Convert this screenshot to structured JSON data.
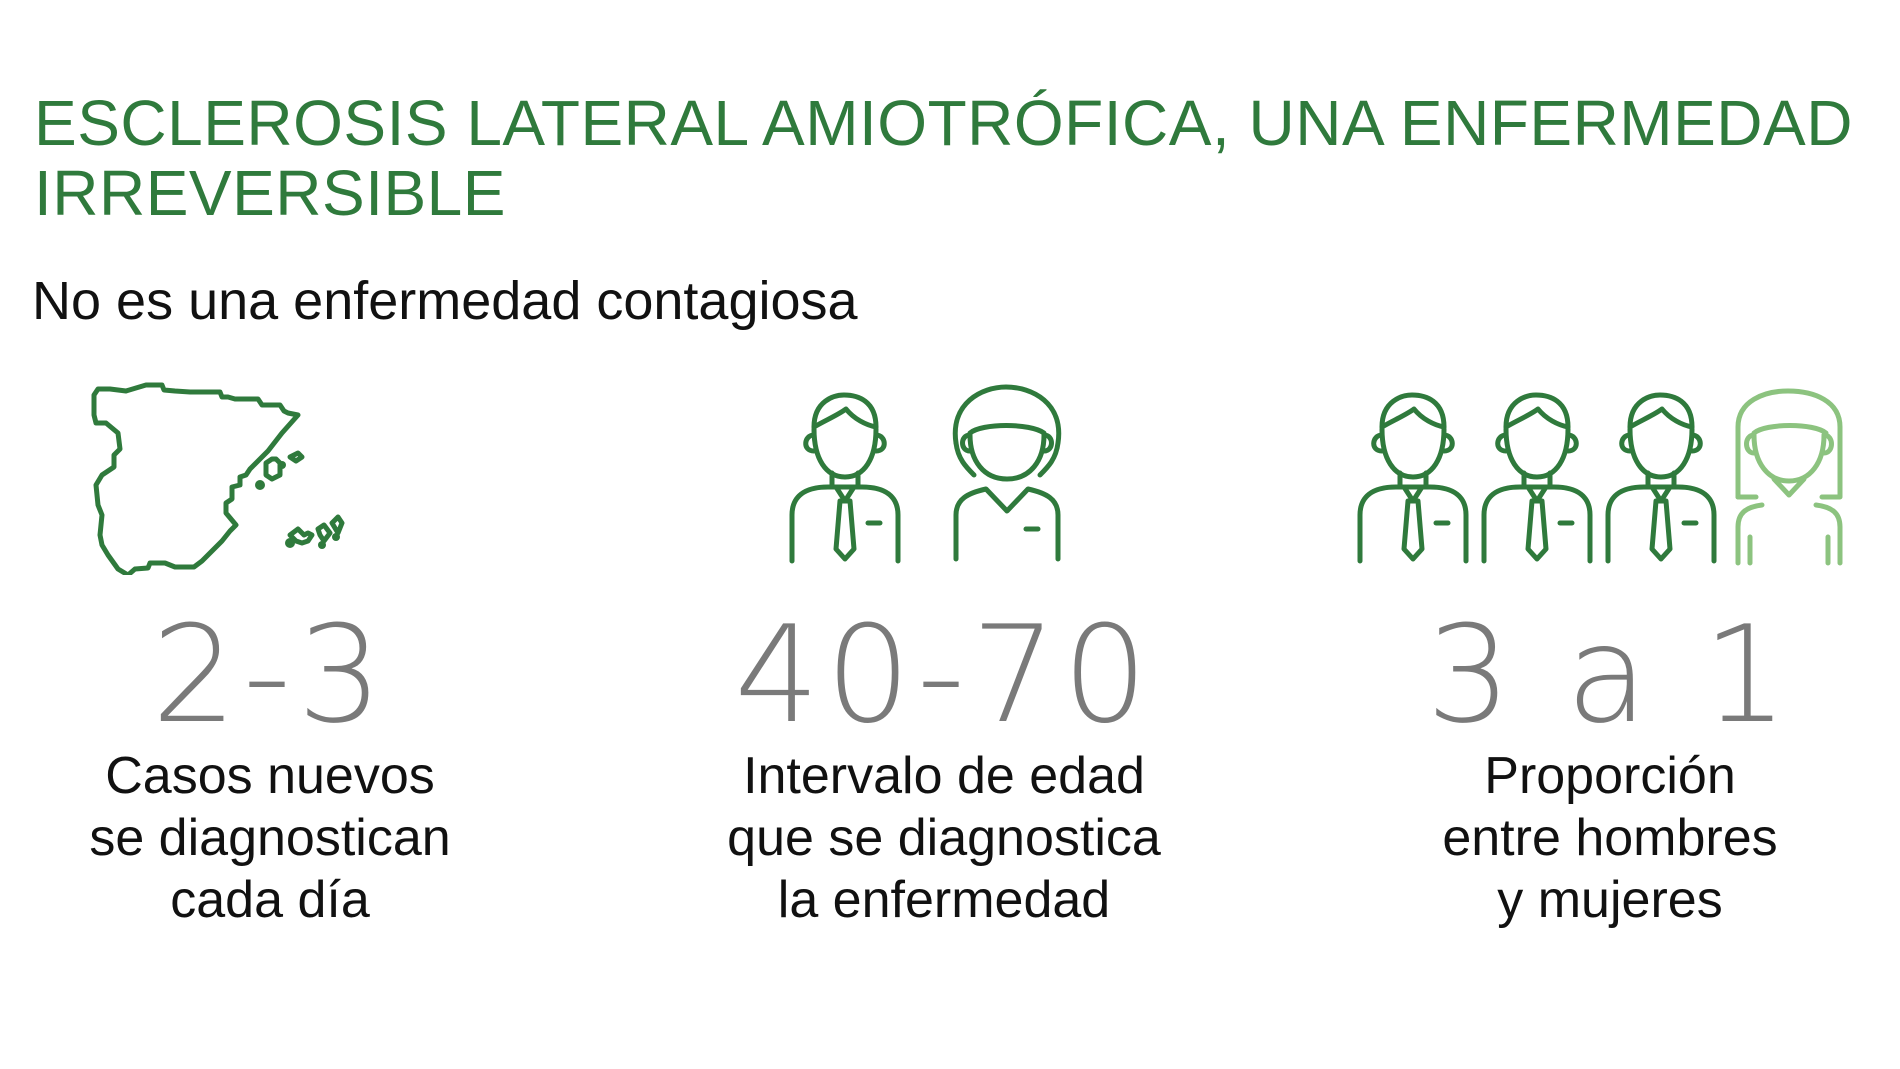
{
  "title": "ESCLEROSIS LATERAL AMIOTRÓFICA, UNA ENFERMEDAD IRREVERSIBLE",
  "subtitle": "No es una enfermedad contagiosa",
  "colors": {
    "accent": "#2f7a3c",
    "accent_light": "#8cc37f",
    "value": "#7a7a7a",
    "text": "#111111"
  },
  "stats": [
    {
      "icon": "spain-map-icon",
      "value": "2-3",
      "description": [
        "Casos nuevos",
        "se diagnostican",
        "cada día"
      ]
    },
    {
      "icon": "man-and-woman-icon",
      "value": "40-70",
      "description": [
        "Intervalo de edad",
        "que se diagnostica",
        "la enfermedad"
      ]
    },
    {
      "icon": "three-men-one-woman-icon",
      "value": "3 a 1",
      "description": [
        "Proporción",
        "entre hombres",
        "y mujeres"
      ]
    }
  ]
}
